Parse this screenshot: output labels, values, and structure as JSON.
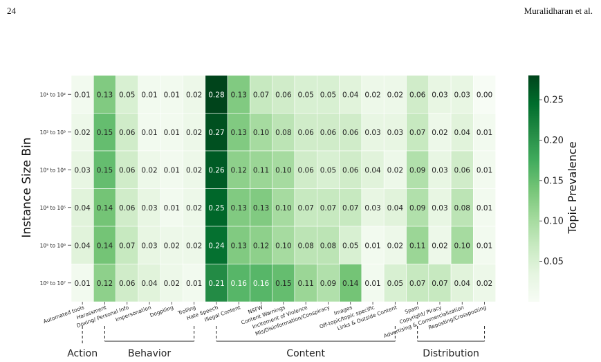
{
  "page": {
    "number": "24",
    "running_head": "Muralidharan et al."
  },
  "chart_data": {
    "type": "heatmap",
    "ylabel": "Instance Size Bin",
    "colorbar_label": "Topic Prevalence",
    "colorbar_ticks": [
      0.05,
      0.1,
      0.15,
      0.2,
      0.25
    ],
    "colorbar_tick_labels": [
      "0.05",
      "0.10",
      "0.15",
      "0.20",
      "0.25"
    ],
    "value_range": [
      0.0,
      0.28
    ],
    "colormap": [
      "#f7fcf5",
      "#e5f5e0",
      "#c7e9c0",
      "#a1d99b",
      "#74c476",
      "#41ab5d",
      "#238b45",
      "#006d2c",
      "#00441b"
    ],
    "rows": [
      "10¹ to 10²",
      "10² to 10³",
      "10³ to 10⁴",
      "10⁴ to 10⁵",
      "10⁵ to 10⁶",
      "10⁶ to 10⁷"
    ],
    "columns": [
      "Automated tools",
      "Harassment",
      "Doxing/ Personal Info",
      "Impersonation",
      "Dogpiling",
      "Trolling",
      "Hate Speech",
      "Illegal Content",
      "NSFW",
      "Content Warnings",
      "Incitement of Violence",
      "Mis/Disinformation/Conspiracy",
      "Images",
      "Off-topic/topic specific",
      "Links & Outside Content",
      "Spam",
      "Copyright/ Piracy",
      "Advertising & Commercialization",
      "Reposting/Crossposting"
    ],
    "values": [
      [
        0.01,
        0.13,
        0.05,
        0.01,
        0.01,
        0.02,
        0.28,
        0.13,
        0.07,
        0.06,
        0.05,
        0.05,
        0.04,
        0.02,
        0.02,
        0.06,
        0.03,
        0.03,
        0.0
      ],
      [
        0.02,
        0.15,
        0.06,
        0.01,
        0.01,
        0.02,
        0.27,
        0.13,
        0.1,
        0.08,
        0.06,
        0.06,
        0.06,
        0.03,
        0.03,
        0.07,
        0.02,
        0.04,
        0.01
      ],
      [
        0.03,
        0.15,
        0.06,
        0.02,
        0.01,
        0.02,
        0.26,
        0.12,
        0.11,
        0.1,
        0.06,
        0.05,
        0.06,
        0.04,
        0.02,
        0.09,
        0.03,
        0.06,
        0.01
      ],
      [
        0.04,
        0.14,
        0.06,
        0.03,
        0.01,
        0.02,
        0.25,
        0.13,
        0.13,
        0.1,
        0.07,
        0.07,
        0.07,
        0.03,
        0.04,
        0.09,
        0.03,
        0.08,
        0.01
      ],
      [
        0.04,
        0.14,
        0.07,
        0.03,
        0.02,
        0.02,
        0.24,
        0.13,
        0.12,
        0.1,
        0.08,
        0.08,
        0.05,
        0.01,
        0.02,
        0.11,
        0.02,
        0.1,
        0.01
      ],
      [
        0.01,
        0.12,
        0.06,
        0.04,
        0.02,
        0.01,
        0.21,
        0.16,
        0.16,
        0.15,
        0.11,
        0.09,
        0.14,
        0.01,
        0.05,
        0.07,
        0.07,
        0.04,
        0.02
      ]
    ],
    "groups": [
      {
        "label": "Action",
        "start": 0,
        "end": 0
      },
      {
        "label": "Behavior",
        "start": 1,
        "end": 5
      },
      {
        "label": "Content",
        "start": 6,
        "end": 14
      },
      {
        "label": "Distribution",
        "start": 15,
        "end": 18
      }
    ]
  }
}
